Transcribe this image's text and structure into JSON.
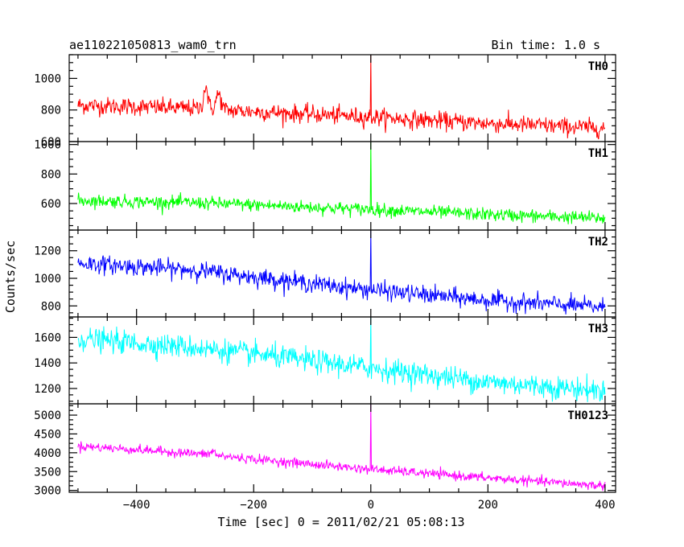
{
  "header": {
    "left_title": "ae110221050813_wam0_trn",
    "right_title": "Bin time: 1.0 s"
  },
  "chart_data": {
    "type": "line",
    "title": "ae110221050813_wam0_trn",
    "subtitle": "Bin time: 1.0 s",
    "xlabel": "Time [sec] 0 = 2011/02/21 05:08:13",
    "ylabel": "Counts/sec",
    "xlim": [
      -515,
      418
    ],
    "x_ticks": [
      -400,
      -200,
      0,
      200,
      400
    ],
    "x_tick_labels": [
      "−400",
      "−200",
      "0",
      "200",
      "400"
    ],
    "x_start": -500,
    "x_end": 400,
    "bin_time": 1.0,
    "grid": false,
    "legend": "none",
    "panels": [
      {
        "name": "TH0",
        "color": "#ff0000",
        "ylim": [
          600,
          1150
        ],
        "y_ticks": [
          600,
          800,
          1000
        ],
        "y_tick_labels": [
          "600",
          "800",
          "1000"
        ],
        "trend": [
          {
            "x": -500,
            "y": 830
          },
          {
            "x": -300,
            "y": 810
          },
          {
            "x": -200,
            "y": 790
          },
          {
            "x": 0,
            "y": 755
          },
          {
            "x": 200,
            "y": 715
          },
          {
            "x": 400,
            "y": 685
          }
        ],
        "noise": 28,
        "features": [
          {
            "x": -282,
            "peak": 950,
            "width": 5
          },
          {
            "x": -260,
            "peak": 900,
            "width": 6
          },
          {
            "x": 0,
            "peak": 1150,
            "width": 0
          }
        ]
      },
      {
        "name": "TH1",
        "color": "#00ff00",
        "ylim": [
          420,
          1020
        ],
        "y_ticks": [
          600,
          800,
          1000
        ],
        "y_tick_labels": [
          "600",
          "800",
          "1000"
        ],
        "trend": [
          {
            "x": -500,
            "y": 620
          },
          {
            "x": -300,
            "y": 605
          },
          {
            "x": -200,
            "y": 590
          },
          {
            "x": 0,
            "y": 560
          },
          {
            "x": 200,
            "y": 525
          },
          {
            "x": 400,
            "y": 500
          }
        ],
        "noise": 22,
        "features": [
          {
            "x": 0,
            "peak": 1020,
            "width": 0
          }
        ]
      },
      {
        "name": "TH2",
        "color": "#0000ff",
        "ylim": [
          720,
          1350
        ],
        "y_ticks": [
          800,
          1000,
          1200
        ],
        "y_tick_labels": [
          "800",
          "1000",
          "1200"
        ],
        "trend": [
          {
            "x": -500,
            "y": 1110
          },
          {
            "x": -300,
            "y": 1060
          },
          {
            "x": -200,
            "y": 1010
          },
          {
            "x": 0,
            "y": 915
          },
          {
            "x": 200,
            "y": 840
          },
          {
            "x": 400,
            "y": 790
          }
        ],
        "noise": 32,
        "features": [
          {
            "x": 0,
            "peak": 1350,
            "width": 0
          }
        ]
      },
      {
        "name": "TH3",
        "color": "#00ffff",
        "ylim": [
          1080,
          1760
        ],
        "y_ticks": [
          1200,
          1400,
          1600
        ],
        "y_tick_labels": [
          "1200",
          "1400",
          "1600"
        ],
        "trend": [
          {
            "x": -500,
            "y": 1590
          },
          {
            "x": -300,
            "y": 1520
          },
          {
            "x": -200,
            "y": 1470
          },
          {
            "x": 0,
            "y": 1360
          },
          {
            "x": 200,
            "y": 1250
          },
          {
            "x": 400,
            "y": 1180
          }
        ],
        "noise": 45,
        "features": [
          {
            "x": 0,
            "peak": 1760,
            "width": 0
          }
        ]
      },
      {
        "name": "TH0123",
        "color": "#ff00ff",
        "ylim": [
          2950,
          5300
        ],
        "y_ticks": [
          3000,
          3500,
          4000,
          4500,
          5000
        ],
        "y_tick_labels": [
          "3000",
          "3500",
          "4000",
          "4500",
          "5000"
        ],
        "trend": [
          {
            "x": -500,
            "y": 4180
          },
          {
            "x": -300,
            "y": 3980
          },
          {
            "x": -200,
            "y": 3830
          },
          {
            "x": 0,
            "y": 3560
          },
          {
            "x": 200,
            "y": 3330
          },
          {
            "x": 400,
            "y": 3120
          }
        ],
        "noise": 60,
        "features": [
          {
            "x": -270,
            "peak": 4050,
            "width": 5
          },
          {
            "x": 0,
            "peak": 5300,
            "width": 0
          }
        ]
      }
    ]
  }
}
